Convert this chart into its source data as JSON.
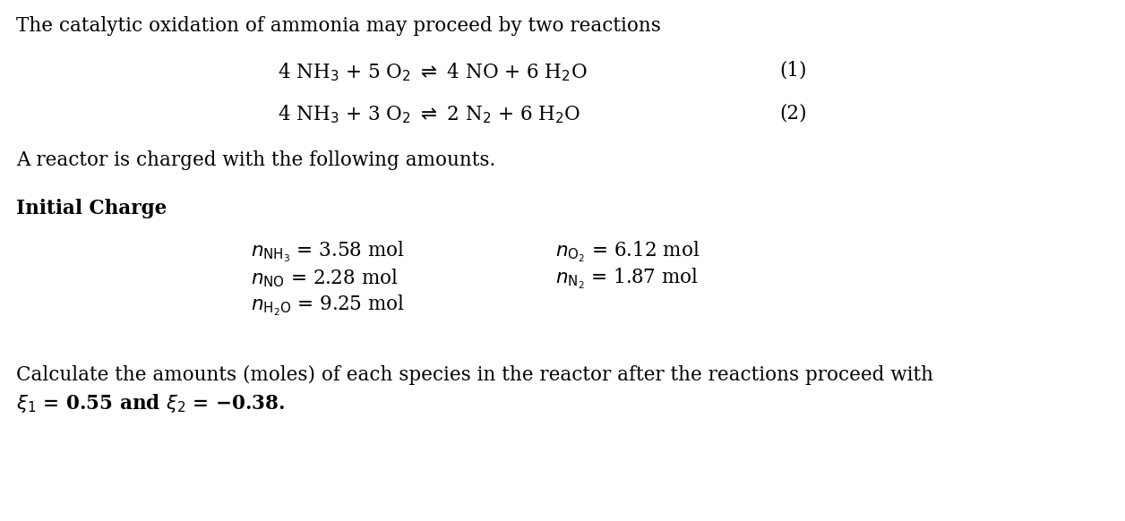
{
  "background_color": "#ffffff",
  "title_line": "The catalytic oxidation of ammonia may proceed by two reactions",
  "reaction1": "4 NH$_3$ + 5 O$_2$ $\\rightleftharpoons$ 4 NO + 6 H$_2$O",
  "reaction2": "4 NH$_3$ + 3 O$_2$ $\\rightleftharpoons$ 2 N$_2$ + 6 H$_2$O",
  "reaction1_num": "(1)",
  "reaction2_num": "(2)",
  "reactor_line": "A reactor is charged with the following amounts.",
  "initial_charge_label": "Initial Charge",
  "n_NH3": "$n_{\\mathrm{NH_3}}$ = 3.58 mol",
  "n_O2": "$n_{\\mathrm{O_2}}$ = 6.12 mol",
  "n_NO": "$n_{\\mathrm{NO}}$ = 2.28 mol",
  "n_N2": "$n_{\\mathrm{N_2}}$ = 1.87 mol",
  "n_H2O": "$n_{\\mathrm{H_2O}}$ = 9.25 mol",
  "calculate_line": "Calculate the amounts (moles) of each species in the reactor after the reactions proceed with",
  "xi_line": "$\\xi_1$ = 0.55 and $\\xi_2$ = −0.38.",
  "font_size": 15.5
}
